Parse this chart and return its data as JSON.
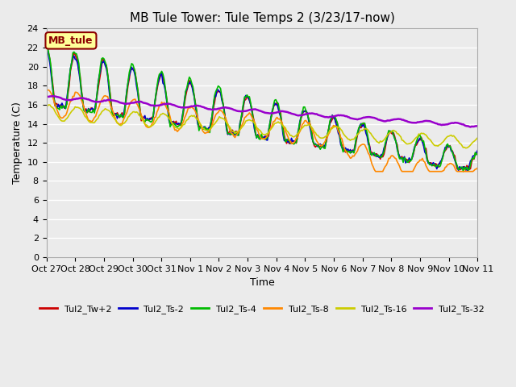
{
  "title": "MB Tule Tower: Tule Temps 2 (3/23/17-now)",
  "xlabel": "Time",
  "ylabel": "Temperature (C)",
  "ylim": [
    0,
    24
  ],
  "yticks": [
    0,
    2,
    4,
    6,
    8,
    10,
    12,
    14,
    16,
    18,
    20,
    22,
    24
  ],
  "plot_bg_color": "#ebebeb",
  "fig_bg_color": "#ebebeb",
  "legend_label": "MB_tule",
  "legend_box_color": "#ffff99",
  "legend_box_border": "#8b0000",
  "series_names": [
    "Tul2_Tw+2",
    "Tul2_Ts-2",
    "Tul2_Ts-4",
    "Tul2_Ts-8",
    "Tul2_Ts-16",
    "Tul2_Ts-32"
  ],
  "series_colors": [
    "#cc0000",
    "#0000cc",
    "#00bb00",
    "#ff8800",
    "#cccc00",
    "#9900cc"
  ],
  "series_lw": [
    1.2,
    1.2,
    1.2,
    1.2,
    1.2,
    1.8
  ],
  "xtick_labels": [
    "Oct 27",
    "Oct 28",
    "Oct 29",
    "Oct 30",
    "Oct 31",
    "Nov 1",
    "Nov 2",
    "Nov 3",
    "Nov 4",
    "Nov 5",
    "Nov 6",
    "Nov 7",
    "Nov 8",
    "Nov 9",
    "Nov 10",
    "Nov 11"
  ],
  "n_days": 15,
  "title_fontsize": 11,
  "axis_fontsize": 9,
  "tick_fontsize": 8
}
